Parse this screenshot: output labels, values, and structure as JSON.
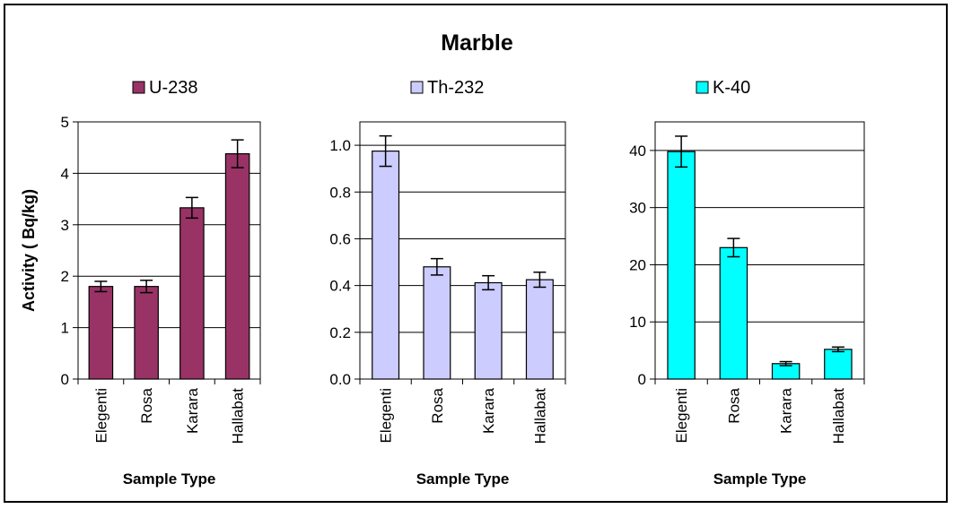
{
  "chart_data": {
    "type": "bar",
    "title": "Marble",
    "panels": [
      {
        "type": "bar",
        "categories": [
          "Elegenti",
          "Rosa",
          "Karara",
          "Hallabat"
        ],
        "series": [
          {
            "name": "U-238",
            "values": [
              1.8,
              1.8,
              3.33,
              4.38
            ],
            "errors": [
              0.1,
              0.12,
              0.2,
              0.27
            ]
          }
        ],
        "color": "#993366",
        "ylim": [
          0,
          5
        ],
        "yticks": [
          0,
          1,
          2,
          3,
          4,
          5
        ],
        "ytick_labels": [
          "0",
          "1",
          "2",
          "3",
          "4",
          "5"
        ],
        "ylabel": "Activity ( Bq/kg)",
        "xlabel": "Sample Type",
        "grid": true,
        "legend": "top"
      },
      {
        "type": "bar",
        "categories": [
          "Elegenti",
          "Rosa",
          "Karara",
          "Hallabat"
        ],
        "series": [
          {
            "name": "Th-232",
            "values": [
              0.975,
              0.48,
              0.412,
              0.425
            ],
            "errors": [
              0.065,
              0.035,
              0.03,
              0.032
            ]
          }
        ],
        "color": "#ccccff",
        "ylim": [
          0,
          1.1
        ],
        "yticks": [
          0,
          0.2,
          0.4,
          0.6,
          0.8,
          1.0
        ],
        "ytick_labels": [
          "0.0",
          "0.2",
          "0.4",
          "0.6",
          "0.8",
          "1.0"
        ],
        "ylabel": "",
        "xlabel": "Sample Type",
        "grid": true,
        "legend": "top"
      },
      {
        "type": "bar",
        "categories": [
          "Elegenti",
          "Rosa",
          "Karara",
          "Hallabat"
        ],
        "series": [
          {
            "name": "K-40",
            "values": [
              39.8,
              23.0,
              2.7,
              5.2
            ],
            "errors": [
              2.7,
              1.6,
              0.35,
              0.4
            ]
          }
        ],
        "color": "#00ffff",
        "ylim": [
          0,
          45
        ],
        "yticks": [
          0,
          10,
          20,
          30,
          40
        ],
        "ytick_labels": [
          "0",
          "10",
          "20",
          "30",
          "40"
        ],
        "ylabel": "",
        "xlabel": "Sample Type",
        "grid": true,
        "legend": "top"
      }
    ]
  }
}
